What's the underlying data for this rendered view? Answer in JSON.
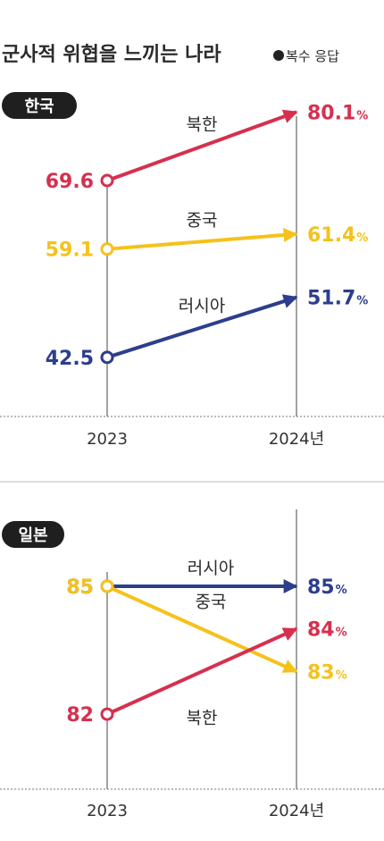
{
  "title": "군사적 위협을 느끼는 나라",
  "note": "복수 응답",
  "unit": "%",
  "colors": {
    "북한": "#d6304f",
    "중국": "#f4c21b",
    "러시아": "#2c3e8c"
  },
  "chart_data": [
    {
      "type": "line",
      "panel": "한국",
      "x": [
        "2023",
        "2024년"
      ],
      "series": [
        {
          "name": "북한",
          "values": [
            69.6,
            80.1
          ],
          "labels": [
            "69.6",
            "80.1"
          ]
        },
        {
          "name": "중국",
          "values": [
            59.1,
            61.4
          ],
          "labels": [
            "59.1",
            "61.4"
          ]
        },
        {
          "name": "러시아",
          "values": [
            42.5,
            51.7
          ],
          "labels": [
            "42.5",
            "51.7"
          ]
        }
      ]
    },
    {
      "type": "line",
      "panel": "일본",
      "x": [
        "2023",
        "2024년"
      ],
      "series": [
        {
          "name": "러시아",
          "values": [
            85,
            85
          ],
          "labels": [
            "85",
            "85"
          ]
        },
        {
          "name": "중국",
          "values": [
            85,
            83
          ],
          "labels": [
            "85",
            "83"
          ]
        },
        {
          "name": "북한",
          "values": [
            82,
            84
          ],
          "labels": [
            "82",
            "84"
          ]
        }
      ]
    }
  ]
}
